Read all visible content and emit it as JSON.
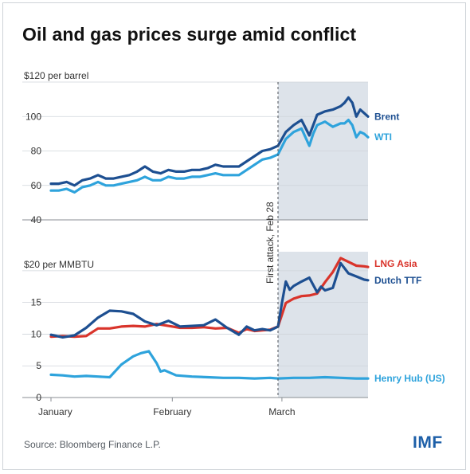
{
  "page": {
    "title": "Oil and gas prices surge amid conflict",
    "source": "Source: Bloomberg Finance L.P.",
    "logo": "IMF"
  },
  "colors": {
    "brent": "#1d4f91",
    "wti": "#2ea3dc",
    "lng_asia": "#d9342b",
    "dutch_ttf": "#1d4f91",
    "henry_hub": "#2ea3dc",
    "shade": "#dde3ea",
    "grid": "#cfd4da"
  },
  "annotation": {
    "label": "First attack, Feb 28",
    "date": "2026-02-28"
  },
  "chart_data": [
    {
      "type": "line",
      "title": "",
      "ylabel": "$120 per barrel",
      "ylim": [
        40,
        120
      ],
      "yticks": [
        "$120 per barrel",
        "100",
        "80",
        "60",
        "40"
      ],
      "xlim": [
        "2026-01-01",
        "2026-03-23"
      ],
      "grid": true,
      "shaded_from": "2026-02-28",
      "series": [
        {
          "name": "Brent",
          "x": [
            "2026-01-01",
            "2026-01-03",
            "2026-01-05",
            "2026-01-07",
            "2026-01-09",
            "2026-01-11",
            "2026-01-13",
            "2026-01-15",
            "2026-01-17",
            "2026-01-19",
            "2026-01-21",
            "2026-01-23",
            "2026-01-25",
            "2026-01-27",
            "2026-01-29",
            "2026-01-31",
            "2026-02-02",
            "2026-02-04",
            "2026-02-06",
            "2026-02-08",
            "2026-02-10",
            "2026-02-12",
            "2026-02-14",
            "2026-02-16",
            "2026-02-18",
            "2026-02-20",
            "2026-02-22",
            "2026-02-24",
            "2026-02-26",
            "2026-02-28",
            "2026-03-02",
            "2026-03-04",
            "2026-03-06",
            "2026-03-08",
            "2026-03-09",
            "2026-03-10",
            "2026-03-12",
            "2026-03-14",
            "2026-03-16",
            "2026-03-17",
            "2026-03-18",
            "2026-03-19",
            "2026-03-20",
            "2026-03-21",
            "2026-03-22",
            "2026-03-23"
          ],
          "values": [
            61,
            61,
            62,
            60,
            63,
            64,
            66,
            64,
            64,
            65,
            66,
            68,
            71,
            68,
            67,
            69,
            68,
            68,
            69,
            69,
            70,
            72,
            71,
            71,
            71,
            74,
            77,
            80,
            81,
            83,
            91,
            95,
            98,
            89,
            95,
            101,
            103,
            104,
            106,
            108,
            111,
            108,
            100,
            104,
            102,
            100
          ]
        },
        {
          "name": "WTI",
          "x": [
            "2026-01-01",
            "2026-01-03",
            "2026-01-05",
            "2026-01-07",
            "2026-01-09",
            "2026-01-11",
            "2026-01-13",
            "2026-01-15",
            "2026-01-17",
            "2026-01-19",
            "2026-01-21",
            "2026-01-23",
            "2026-01-25",
            "2026-01-27",
            "2026-01-29",
            "2026-01-31",
            "2026-02-02",
            "2026-02-04",
            "2026-02-06",
            "2026-02-08",
            "2026-02-10",
            "2026-02-12",
            "2026-02-14",
            "2026-02-16",
            "2026-02-18",
            "2026-02-20",
            "2026-02-22",
            "2026-02-24",
            "2026-02-26",
            "2026-02-28",
            "2026-03-02",
            "2026-03-04",
            "2026-03-06",
            "2026-03-08",
            "2026-03-09",
            "2026-03-10",
            "2026-03-12",
            "2026-03-14",
            "2026-03-16",
            "2026-03-17",
            "2026-03-18",
            "2026-03-19",
            "2026-03-20",
            "2026-03-21",
            "2026-03-22",
            "2026-03-23"
          ],
          "values": [
            57,
            57,
            58,
            56,
            59,
            60,
            62,
            60,
            60,
            61,
            62,
            63,
            65,
            63,
            63,
            65,
            64,
            64,
            65,
            65,
            66,
            67,
            66,
            66,
            66,
            69,
            72,
            75,
            76,
            78,
            87,
            91,
            93,
            83,
            90,
            95,
            97,
            94,
            96,
            96,
            98,
            95,
            88,
            91,
            90,
            88
          ]
        }
      ],
      "legend": "right"
    },
    {
      "type": "line",
      "title": "",
      "ylabel": "$20 per MMBTU",
      "ylim": [
        0,
        23
      ],
      "yticks": [
        "$20 per MMBTU",
        "15",
        "10",
        "5",
        "0"
      ],
      "xlim": [
        "2026-01-01",
        "2026-03-23"
      ],
      "xticks": [
        "January",
        "February",
        "March"
      ],
      "grid": true,
      "shaded_from": "2026-02-28",
      "series": [
        {
          "name": "LNG Asia",
          "x": [
            "2026-01-01",
            "2026-01-04",
            "2026-01-07",
            "2026-01-10",
            "2026-01-13",
            "2026-01-16",
            "2026-01-19",
            "2026-01-22",
            "2026-01-25",
            "2026-01-28",
            "2026-01-31",
            "2026-02-03",
            "2026-02-06",
            "2026-02-09",
            "2026-02-12",
            "2026-02-15",
            "2026-02-18",
            "2026-02-20",
            "2026-02-22",
            "2026-02-24",
            "2026-02-26",
            "2026-02-28",
            "2026-03-02",
            "2026-03-04",
            "2026-03-06",
            "2026-03-08",
            "2026-03-10",
            "2026-03-12",
            "2026-03-14",
            "2026-03-16",
            "2026-03-18",
            "2026-03-20",
            "2026-03-22",
            "2026-03-23"
          ],
          "values": [
            9.6,
            9.7,
            9.6,
            9.7,
            10.9,
            10.9,
            11.2,
            11.3,
            11.2,
            11.6,
            11.3,
            11.0,
            11.0,
            11.1,
            10.9,
            11.0,
            10.2,
            10.8,
            10.5,
            10.6,
            10.7,
            11.2,
            14.9,
            15.6,
            16.0,
            16.1,
            16.4,
            18.2,
            19.8,
            22.0,
            21.4,
            20.8,
            20.7,
            20.6
          ]
        },
        {
          "name": "Dutch TTF",
          "x": [
            "2026-01-01",
            "2026-01-04",
            "2026-01-07",
            "2026-01-10",
            "2026-01-13",
            "2026-01-16",
            "2026-01-19",
            "2026-01-22",
            "2026-01-25",
            "2026-01-28",
            "2026-01-31",
            "2026-02-03",
            "2026-02-06",
            "2026-02-09",
            "2026-02-12",
            "2026-02-15",
            "2026-02-18",
            "2026-02-20",
            "2026-02-22",
            "2026-02-24",
            "2026-02-26",
            "2026-02-28",
            "2026-03-01",
            "2026-03-02",
            "2026-03-03",
            "2026-03-04",
            "2026-03-06",
            "2026-03-08",
            "2026-03-10",
            "2026-03-11",
            "2026-03-12",
            "2026-03-14",
            "2026-03-16",
            "2026-03-18",
            "2026-03-20",
            "2026-03-22",
            "2026-03-23"
          ],
          "values": [
            9.9,
            9.5,
            9.8,
            11.0,
            12.6,
            13.7,
            13.6,
            13.2,
            12.0,
            11.4,
            12.1,
            11.2,
            11.3,
            11.4,
            12.3,
            11.0,
            9.9,
            11.2,
            10.6,
            10.8,
            10.6,
            11.2,
            14.9,
            18.3,
            17.0,
            17.6,
            18.3,
            18.9,
            16.6,
            17.5,
            16.9,
            17.3,
            21.2,
            19.6,
            19.1,
            18.6,
            18.5
          ]
        },
        {
          "name": "Henry Hub (US)",
          "x": [
            "2026-01-01",
            "2026-01-04",
            "2026-01-07",
            "2026-01-10",
            "2026-01-13",
            "2026-01-16",
            "2026-01-19",
            "2026-01-22",
            "2026-01-24",
            "2026-01-26",
            "2026-01-28",
            "2026-01-29",
            "2026-01-30",
            "2026-02-02",
            "2026-02-06",
            "2026-02-10",
            "2026-02-14",
            "2026-02-18",
            "2026-02-22",
            "2026-02-26",
            "2026-02-28",
            "2026-03-04",
            "2026-03-08",
            "2026-03-12",
            "2026-03-16",
            "2026-03-20",
            "2026-03-23"
          ],
          "values": [
            3.6,
            3.5,
            3.3,
            3.4,
            3.3,
            3.2,
            5.2,
            6.5,
            7.0,
            7.3,
            5.4,
            4.1,
            4.3,
            3.5,
            3.3,
            3.2,
            3.1,
            3.1,
            3.0,
            3.1,
            3.0,
            3.1,
            3.1,
            3.2,
            3.1,
            3.0,
            3.0
          ]
        }
      ],
      "legend": "right"
    }
  ]
}
